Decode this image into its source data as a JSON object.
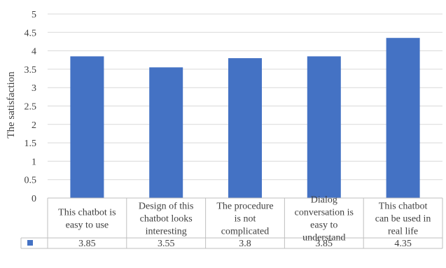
{
  "chart_data": {
    "type": "bar",
    "title": "",
    "ylabel": "The satisfaction",
    "xlabel": "",
    "ylim": [
      0,
      5
    ],
    "yticks": [
      0,
      0.5,
      1,
      1.5,
      2,
      2.5,
      3,
      3.5,
      4,
      4.5,
      5
    ],
    "ytick_labels": [
      "0",
      "0.5",
      "1",
      "1.5",
      "2",
      "2.5",
      "3",
      "3.5",
      "4",
      "4.5",
      "5"
    ],
    "grid": true,
    "legend": "data-table-key",
    "categories": [
      [
        "This chatbot is",
        "easy to use"
      ],
      [
        "Design of this",
        "chatbot looks",
        "interesting"
      ],
      [
        "The procedure",
        "is not",
        "complicated"
      ],
      [
        "Dialog",
        "conversation is",
        "easy to",
        "understand"
      ],
      [
        "This chatbot",
        "can be used in",
        "real life"
      ]
    ],
    "values": [
      3.85,
      3.55,
      3.8,
      3.85,
      4.35
    ],
    "value_labels": [
      "3.85",
      "3.55",
      "3.8",
      "3.85",
      "4.35"
    ],
    "bar_color": "#4472c4",
    "grid_color": "#d9d9d9",
    "table_border_color": "#bfbfbf"
  }
}
